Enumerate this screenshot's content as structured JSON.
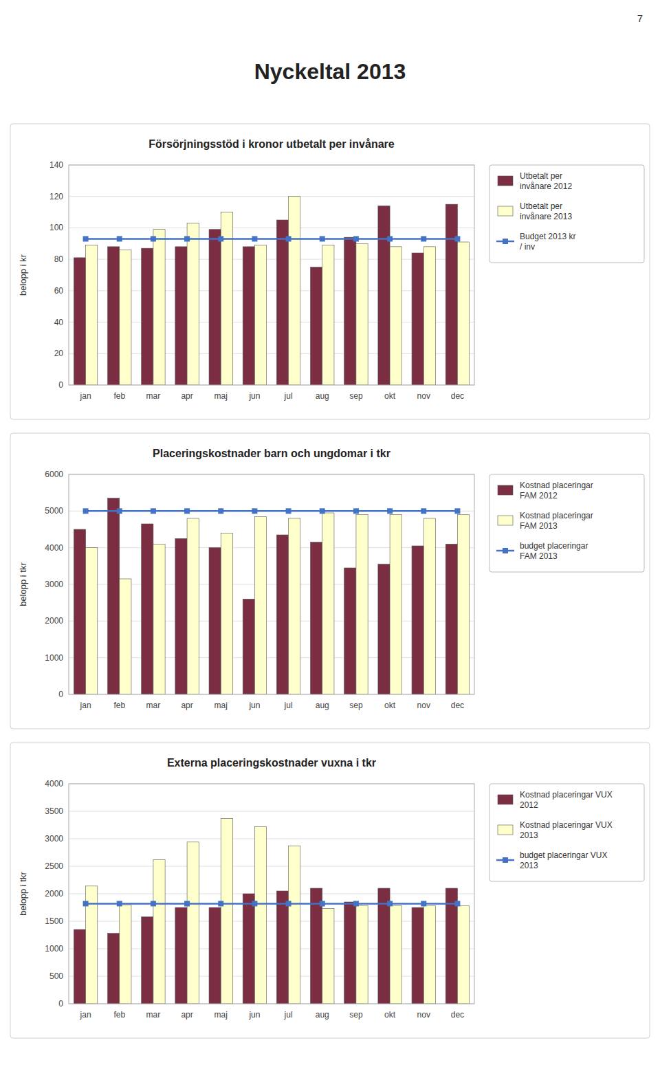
{
  "title": "Nyckeltal 2013",
  "page_number": "7",
  "chart_data": [
    {
      "type": "bar",
      "title": "Försörjningsstöd i kronor utbetalt per invånare",
      "y_label": "belopp i kr",
      "categories": [
        "jan",
        "feb",
        "mar",
        "apr",
        "maj",
        "jun",
        "jul",
        "aug",
        "sep",
        "okt",
        "nov",
        "dec"
      ],
      "series": [
        {
          "name": "Utbetalt per\ninvånare 2012",
          "color": "#7B2D42",
          "values": [
            81,
            88,
            87,
            88,
            99,
            88,
            105,
            75,
            94,
            114,
            84,
            115
          ]
        },
        {
          "name": "Utbetalt per\ninvånare 2013",
          "color": "#FFFFCC",
          "values": [
            89,
            86,
            99,
            103,
            110,
            89,
            120,
            89,
            90,
            88,
            88,
            91
          ]
        },
        {
          "name": "Budget 2013 kr\n/ inv",
          "type": "line",
          "color": "#4472C4",
          "marker": "square",
          "values": [
            93,
            93,
            93,
            93,
            93,
            93,
            93,
            93,
            93,
            93,
            93,
            93
          ]
        }
      ],
      "ylim": [
        0,
        140
      ],
      "yticks": [
        0,
        20,
        40,
        60,
        80,
        100,
        120,
        140
      ],
      "grid": true,
      "legend": "right"
    },
    {
      "type": "bar",
      "title": "Placeringskostnader barn och ungdomar i tkr",
      "y_label": "belopp i tkr",
      "categories": [
        "jan",
        "feb",
        "mar",
        "apr",
        "maj",
        "jun",
        "jul",
        "aug",
        "sep",
        "okt",
        "nov",
        "dec"
      ],
      "series": [
        {
          "name": "Kostnad placeringar\nFAM 2012",
          "color": "#7B2D42",
          "values": [
            4500,
            5350,
            4650,
            4250,
            4000,
            2600,
            4350,
            4150,
            3450,
            3550,
            4050,
            4100
          ]
        },
        {
          "name": "Kostnad placeringar\nFAM 2013",
          "color": "#FFFFCC",
          "values": [
            4000,
            3150,
            4100,
            4800,
            4400,
            4850,
            4800,
            4950,
            4900,
            4900,
            4800,
            4900
          ]
        },
        {
          "name": "budget placeringar\nFAM 2013",
          "type": "line",
          "color": "#4472C4",
          "marker": "square",
          "values": [
            5000,
            5000,
            5000,
            5000,
            5000,
            5000,
            5000,
            5000,
            5000,
            5000,
            5000,
            5000
          ]
        }
      ],
      "ylim": [
        0,
        6000
      ],
      "yticks": [
        0,
        1000,
        2000,
        3000,
        4000,
        5000,
        6000
      ],
      "grid": true,
      "legend": "right"
    },
    {
      "type": "bar",
      "title": "Externa placeringskostnader vuxna i tkr",
      "y_label": "belopp i tkr",
      "categories": [
        "jan",
        "feb",
        "mar",
        "apr",
        "maj",
        "jun",
        "jul",
        "aug",
        "sep",
        "okt",
        "nov",
        "dec"
      ],
      "series": [
        {
          "name": "Kostnad placeringar VUX\n2012",
          "color": "#7B2D42",
          "values": [
            1350,
            1280,
            1580,
            1750,
            1750,
            2000,
            2050,
            2100,
            1850,
            2100,
            1750,
            2100
          ]
        },
        {
          "name": "Kostnad placeringar VUX\n2013",
          "color": "#FFFFCC",
          "values": [
            2140,
            1800,
            2620,
            2940,
            3370,
            3220,
            2870,
            1730,
            1780,
            1780,
            1780,
            1780
          ]
        },
        {
          "name": "budget placeringar VUX\n2013",
          "type": "line",
          "color": "#4472C4",
          "marker": "square",
          "values": [
            1820,
            1820,
            1820,
            1820,
            1820,
            1820,
            1820,
            1820,
            1820,
            1820,
            1820,
            1820
          ]
        }
      ],
      "ylim": [
        0,
        4000
      ],
      "yticks": [
        0,
        500,
        1000,
        1500,
        2000,
        2500,
        3000,
        3500,
        4000
      ],
      "grid": true,
      "legend": "right"
    }
  ]
}
